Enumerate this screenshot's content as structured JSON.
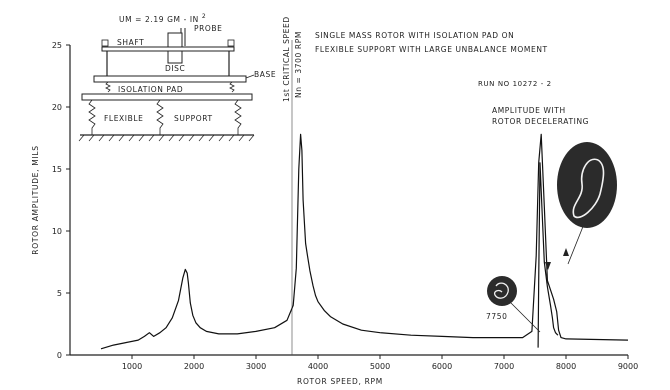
{
  "chart_data": {
    "type": "line",
    "title": "SINGLE MASS ROTOR WITH ISOLATION PAD ON FLEXIBLE SUPPORT WITH LARGE UNBALANCE MOMENT",
    "title_lines": [
      "SINGLE MASS ROTOR WITH ISOLATION PAD ON",
      "FLEXIBLE SUPPORT WITH LARGE UNBALANCE MOMENT"
    ],
    "run_label": "RUN NO 10272 - 2",
    "xlabel": "ROTOR SPEED, RPM",
    "ylabel": "ROTOR AMPLITUDE, MILS",
    "xlim": [
      0,
      9000
    ],
    "ylim": [
      0,
      25
    ],
    "xticks": [
      1000,
      2000,
      3000,
      4000,
      5000,
      6000,
      7000,
      8000,
      9000
    ],
    "yticks": [
      0,
      5,
      10,
      15,
      20,
      25
    ],
    "grid": false,
    "series": [
      {
        "x": [
          500,
          700,
          900,
          1100,
          1200,
          1280,
          1350,
          1450,
          1550,
          1650,
          1750,
          1820,
          1860,
          1890,
          1910,
          1940,
          1980,
          2030,
          2100,
          2200,
          2400,
          2700,
          3000,
          3300,
          3500,
          3600,
          3650,
          3690,
          3720,
          3740,
          3760,
          3800,
          3830,
          3870,
          3920,
          3960,
          4000,
          4100,
          4200,
          4400,
          4700,
          5000,
          5500,
          6000,
          6500,
          7000,
          7300,
          7450,
          7520,
          7560,
          7600,
          7650,
          7700,
          7800,
          7850,
          7880,
          7920,
          8000,
          8500,
          9000
        ],
        "y": [
          0.5,
          0.8,
          1.0,
          1.2,
          1.5,
          1.8,
          1.5,
          1.8,
          2.2,
          3.0,
          4.4,
          6.2,
          6.9,
          6.6,
          5.8,
          4.2,
          3.2,
          2.6,
          2.2,
          1.9,
          1.7,
          1.7,
          1.9,
          2.2,
          2.8,
          4.0,
          7.0,
          15.0,
          17.8,
          16.5,
          12.5,
          9.0,
          8.0,
          6.8,
          5.6,
          4.8,
          4.3,
          3.6,
          3.1,
          2.5,
          2.0,
          1.8,
          1.6,
          1.5,
          1.4,
          1.4,
          1.4,
          1.9,
          8.0,
          15.5,
          17.8,
          12.0,
          6.0,
          4.5,
          3.5,
          2.0,
          1.4,
          1.3,
          1.25,
          1.2
        ]
      },
      {
        "x": [
          7550,
          7560,
          7580,
          7620,
          7650,
          7700,
          7750,
          7780,
          7800,
          7830,
          7870
        ],
        "y": [
          0.6,
          6.0,
          15.5,
          11.0,
          7.5,
          5.5,
          4.0,
          3.0,
          2.2,
          1.8,
          1.6
        ]
      }
    ],
    "annotations": {
      "critical_speed": "1st CRITICAL SPEED",
      "critical_speed_value": "Nn = 3700 RPM",
      "amplitude_note": [
        "AMPLITUDE WITH",
        "ROTOR DECELERATING"
      ],
      "orbit_speed": "7750"
    }
  },
  "schematic": {
    "unbalance": "UM = 2.19 GM - IN",
    "unbalance_exp": "2",
    "labels": {
      "probe": "PROBE",
      "shaft": "SHAFT",
      "disc": "DISC",
      "base": "BASE",
      "isolation_pad": "ISOLATION PAD",
      "flexible": "FLEXIBLE",
      "support": "SUPPORT"
    }
  }
}
